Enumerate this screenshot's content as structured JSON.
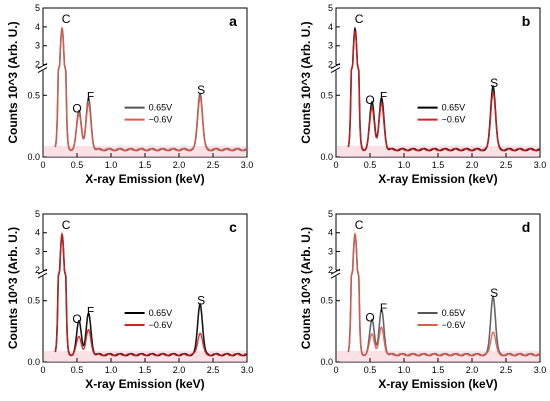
{
  "chart_data": [
    {
      "type": "line",
      "panel_label": "a",
      "xlabel": "X-ray Emission (keV)",
      "ylabel": "Counts 10^3 (Arb. U.)",
      "xlim": [
        0,
        3.0
      ],
      "x_ticks": [
        "0",
        "0.5",
        "1.0",
        "1.5",
        "2.0",
        "2.5",
        "3.0"
      ],
      "y_ticks_lower": [
        "0.0",
        "0.5"
      ],
      "y_ticks_upper": [
        "2",
        "3",
        "4",
        "5"
      ],
      "y_break": true,
      "peak_labels": [
        {
          "text": "C",
          "x": 0.28,
          "y": 3.85
        },
        {
          "text": "O",
          "x": 0.53,
          "y": 0.31
        },
        {
          "text": "F",
          "x": 0.67,
          "y": 0.41
        },
        {
          "text": "S",
          "x": 2.31,
          "y": 0.46
        }
      ],
      "series": [
        {
          "name": "0.65V",
          "color": "#555555",
          "peaks": [
            [
              0.28,
              3.85
            ],
            [
              0.53,
              0.31
            ],
            [
              0.67,
              0.41
            ],
            [
              2.31,
              0.46
            ]
          ]
        },
        {
          "name": "−0.6V",
          "color": "#e05a4a",
          "peaks": [
            [
              0.28,
              3.85
            ],
            [
              0.53,
              0.29
            ],
            [
              0.67,
              0.37
            ],
            [
              2.31,
              0.43
            ]
          ]
        }
      ]
    },
    {
      "type": "line",
      "panel_label": "b",
      "xlabel": "X-ray Emission (keV)",
      "ylabel": "Counts 10^3 (Arb. U.)",
      "xlim": [
        0,
        3.0
      ],
      "x_ticks": [
        "0",
        "0.5",
        "1.0",
        "1.5",
        "2.0",
        "2.5",
        "3.0"
      ],
      "y_ticks_lower": [
        "0.0",
        "0.5"
      ],
      "y_ticks_upper": [
        "2",
        "3",
        "4",
        "5"
      ],
      "y_break": true,
      "peak_labels": [
        {
          "text": "C",
          "x": 0.28,
          "y": 3.85
        },
        {
          "text": "O",
          "x": 0.53,
          "y": 0.38
        },
        {
          "text": "F",
          "x": 0.67,
          "y": 0.41
        },
        {
          "text": "S",
          "x": 2.31,
          "y": 0.52
        }
      ],
      "series": [
        {
          "name": "0.65V",
          "color": "#000000",
          "peaks": [
            [
              0.28,
              3.85
            ],
            [
              0.53,
              0.38
            ],
            [
              0.67,
              0.41
            ],
            [
              2.31,
              0.52
            ]
          ]
        },
        {
          "name": "−0.6V",
          "color": "#d62020",
          "peaks": [
            [
              0.28,
              3.7
            ],
            [
              0.53,
              0.34
            ],
            [
              0.67,
              0.37
            ],
            [
              2.31,
              0.47
            ]
          ]
        }
      ]
    },
    {
      "type": "line",
      "panel_label": "c",
      "xlabel": "X-ray Emission (keV)",
      "ylabel": "Counts 10^3 (Arb. U.)",
      "xlim": [
        0,
        3.0
      ],
      "x_ticks": [
        "0",
        "0.5",
        "1.0",
        "1.5",
        "2.0",
        "2.5",
        "3.0"
      ],
      "y_ticks_lower": [
        "0.0",
        "0.5"
      ],
      "y_ticks_upper": [
        "2",
        "3",
        "4",
        "5"
      ],
      "y_break": true,
      "peak_labels": [
        {
          "text": "C",
          "x": 0.28,
          "y": 3.85
        },
        {
          "text": "O",
          "x": 0.53,
          "y": 0.27
        },
        {
          "text": "F",
          "x": 0.67,
          "y": 0.33
        },
        {
          "text": "S",
          "x": 2.31,
          "y": 0.42
        }
      ],
      "series": [
        {
          "name": "0.65V",
          "color": "#000000",
          "peaks": [
            [
              0.28,
              3.85
            ],
            [
              0.53,
              0.27
            ],
            [
              0.67,
              0.33
            ],
            [
              2.31,
              0.42
            ]
          ]
        },
        {
          "name": "−0.6V",
          "color": "#d62020",
          "peaks": [
            [
              0.28,
              3.85
            ],
            [
              0.53,
              0.15
            ],
            [
              0.67,
              0.2
            ],
            [
              2.31,
              0.18
            ]
          ]
        }
      ]
    },
    {
      "type": "line",
      "panel_label": "d",
      "xlabel": "X-ray Emission (keV)",
      "ylabel": "Counts 10^3 (Arb. U.)",
      "xlim": [
        0,
        3.0
      ],
      "x_ticks": [
        "0",
        "0.5",
        "1.0",
        "1.5",
        "2.0",
        "2.5",
        "3.0"
      ],
      "y_ticks_lower": [
        "0.0",
        "0.5"
      ],
      "y_ticks_upper": [
        "2",
        "3",
        "4",
        "5"
      ],
      "y_break": true,
      "peak_labels": [
        {
          "text": "C",
          "x": 0.28,
          "y": 3.85
        },
        {
          "text": "O",
          "x": 0.53,
          "y": 0.28
        },
        {
          "text": "F",
          "x": 0.67,
          "y": 0.36
        },
        {
          "text": "S",
          "x": 2.31,
          "y": 0.48
        }
      ],
      "series": [
        {
          "name": "0.65V",
          "color": "#555555",
          "peaks": [
            [
              0.28,
              3.85
            ],
            [
              0.53,
              0.28
            ],
            [
              0.67,
              0.36
            ],
            [
              2.31,
              0.48
            ]
          ]
        },
        {
          "name": "−0.6V",
          "color": "#e05a4a",
          "peaks": [
            [
              0.28,
              3.85
            ],
            [
              0.53,
              0.17
            ],
            [
              0.67,
              0.22
            ],
            [
              2.31,
              0.19
            ]
          ]
        }
      ]
    }
  ]
}
